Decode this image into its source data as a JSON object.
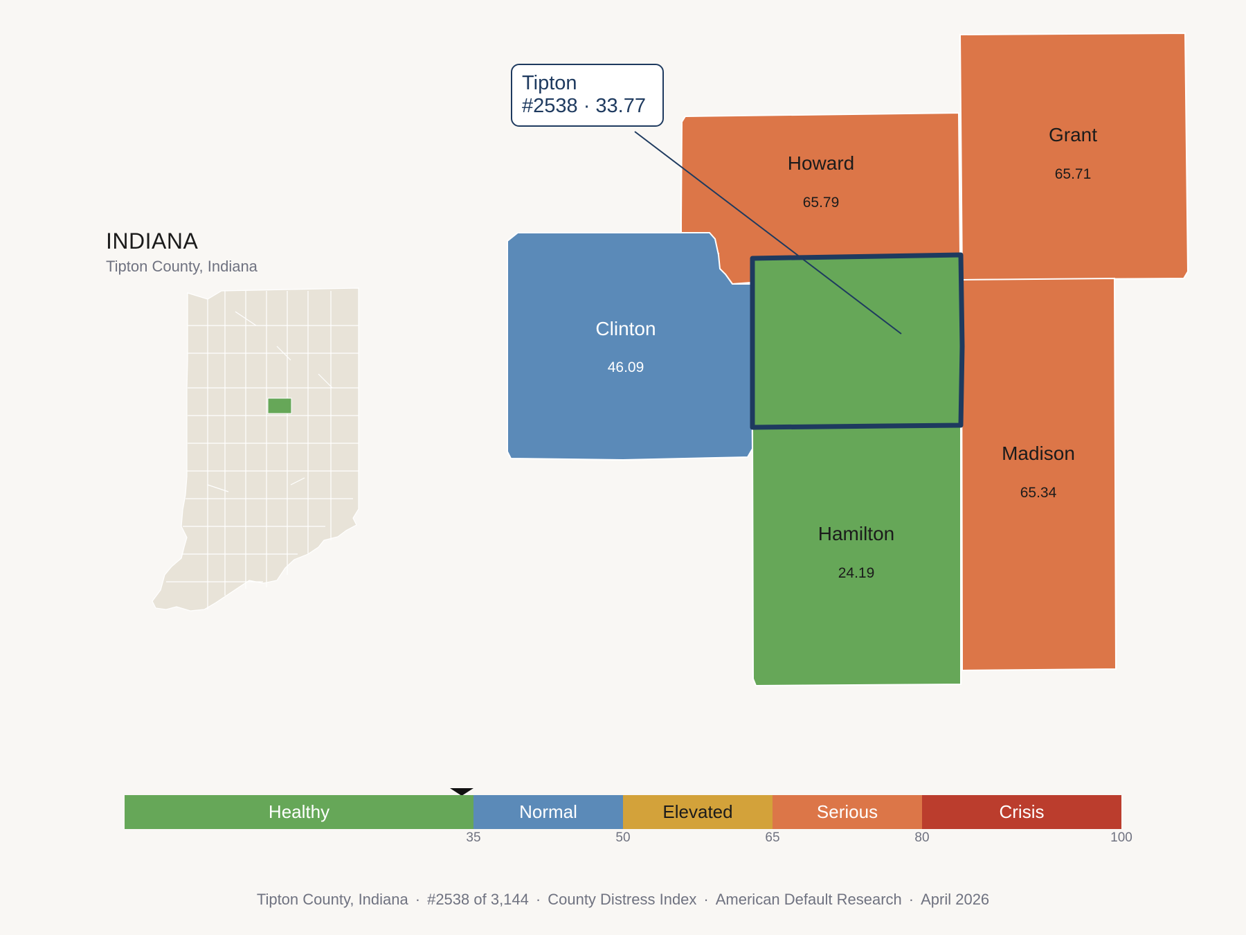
{
  "state": {
    "title": "INDIANA",
    "subtitle": "Tipton County, Indiana"
  },
  "callout": {
    "name": "Tipton",
    "rank_value": "#2538 · 33.77"
  },
  "counties": {
    "howard": {
      "name": "Howard",
      "value": "65.79",
      "band": "Serious"
    },
    "grant": {
      "name": "Grant",
      "value": "65.71",
      "band": "Serious"
    },
    "clinton": {
      "name": "Clinton",
      "value": "46.09",
      "band": "Normal"
    },
    "madison": {
      "name": "Madison",
      "value": "65.34",
      "band": "Serious"
    },
    "hamilton": {
      "name": "Hamilton",
      "value": "24.19",
      "band": "Healthy"
    },
    "tipton": {
      "name": "Tipton",
      "value": "33.77",
      "band": "Healthy",
      "highlighted": true
    }
  },
  "legend": {
    "segments": [
      {
        "label": "Healthy",
        "from": 0,
        "to": 35,
        "color": "#66a758"
      },
      {
        "label": "Normal",
        "from": 35,
        "to": 50,
        "color": "#5b8ab8"
      },
      {
        "label": "Elevated",
        "from": 50,
        "to": 65,
        "color": "#d3a23a"
      },
      {
        "label": "Serious",
        "from": 65,
        "to": 80,
        "color": "#dc7648"
      },
      {
        "label": "Crisis",
        "from": 80,
        "to": 100,
        "color": "#bb3d2d"
      }
    ],
    "ticks": [
      "35",
      "50",
      "65",
      "80",
      "100"
    ],
    "marker_value": 35
  },
  "colors": {
    "healthy": "#66a758",
    "normal": "#5b8ab8",
    "serious": "#dc7648",
    "highlight_outline": "#1e3a5f",
    "state_fill": "#e8e3d8"
  },
  "footer": {
    "county": "Tipton County, Indiana",
    "rank": "#2538 of 3,144",
    "index": "County Distress Index",
    "source": "American Default Research",
    "date": "April 2026"
  }
}
